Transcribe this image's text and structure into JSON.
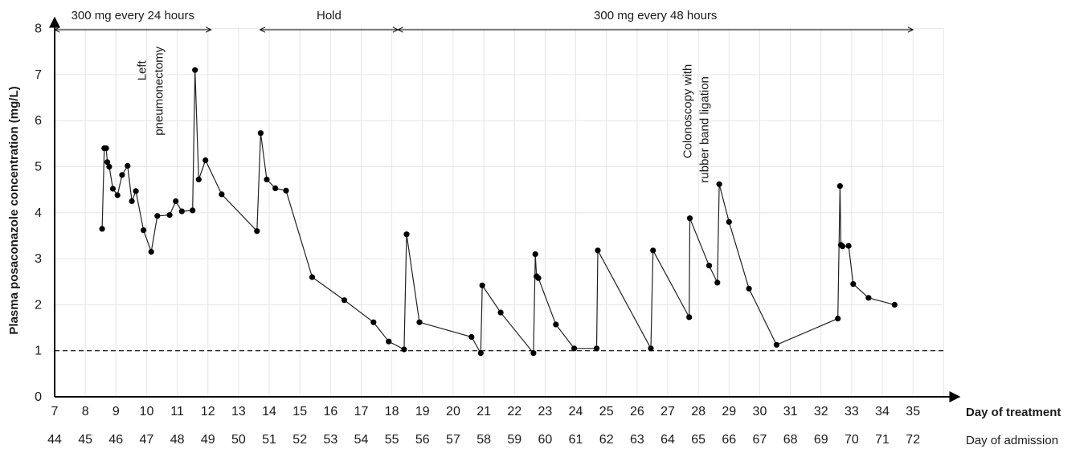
{
  "chart_data": {
    "type": "line",
    "ylabel": "Plasma posaconazole concentration (mg/L)",
    "xlabel": "Day of treatment",
    "x2label": "Day of admission",
    "xlim": [
      7,
      36
    ],
    "ylim": [
      0,
      8
    ],
    "y_ticks": [
      "0",
      "1",
      "2",
      "3",
      "4",
      "5",
      "6",
      "7",
      "8"
    ],
    "x_ticks": [
      "7",
      "8",
      "9",
      "10",
      "11",
      "12",
      "13",
      "14",
      "15",
      "16",
      "17",
      "18",
      "19",
      "20",
      "21",
      "22",
      "23",
      "24",
      "25",
      "26",
      "27",
      "28",
      "29",
      "30",
      "31",
      "32",
      "33",
      "34",
      "35"
    ],
    "x_admission_ticks": [
      "44",
      "45",
      "46",
      "47",
      "48",
      "49",
      "50",
      "51",
      "52",
      "53",
      "54",
      "55",
      "56",
      "57",
      "58",
      "59",
      "60",
      "61",
      "62",
      "63",
      "64",
      "65",
      "66",
      "67",
      "68",
      "69",
      "70",
      "71",
      "72"
    ],
    "grid": true,
    "threshold": 1.0,
    "phases": [
      {
        "label": "300 mg  every 24 hours",
        "start": 7,
        "end": 12.1
      },
      {
        "label": "Hold",
        "start": 13.7,
        "end": 18.2
      },
      {
        "label": "300 mg every 48 hours",
        "start": 18.2,
        "end": 35
      }
    ],
    "annotations": [
      {
        "lines": [
          "Left",
          "pneumonectomy"
        ],
        "x": 10.1,
        "y": 7.4
      },
      {
        "lines": [
          "Colonoscopy with",
          "rubber band ligation"
        ],
        "x": 27.9,
        "y": 7.3
      }
    ],
    "series": [
      {
        "x": [
          8.55,
          8.62,
          8.68,
          8.72,
          8.78,
          8.9,
          9.05,
          9.2,
          9.38,
          9.52,
          9.65,
          9.9,
          10.15,
          10.35,
          10.75,
          10.95,
          11.15,
          11.5,
          11.58,
          11.7,
          11.92,
          12.45,
          13.6,
          13.72,
          13.92,
          14.2,
          14.55,
          15.4,
          16.45,
          17.4,
          17.9,
          18.4,
          18.48,
          18.9,
          20.6,
          20.9,
          20.95,
          21.55,
          22.62,
          22.68,
          22.72,
          22.78,
          23.35,
          23.95,
          24.68,
          24.72,
          26.45,
          26.52,
          27.7,
          27.72,
          28.35,
          28.62,
          28.68,
          29.0,
          29.65,
          30.55,
          32.55,
          32.62,
          32.65,
          32.7,
          32.9,
          33.05,
          33.55,
          34.4
        ],
        "y": [
          3.65,
          5.4,
          5.4,
          5.1,
          5.0,
          4.52,
          4.38,
          4.82,
          5.02,
          4.25,
          4.47,
          3.62,
          3.15,
          3.93,
          3.95,
          4.25,
          4.03,
          4.05,
          7.1,
          4.72,
          5.14,
          4.4,
          3.6,
          5.73,
          4.72,
          4.53,
          4.48,
          2.6,
          2.1,
          1.62,
          1.2,
          1.03,
          3.53,
          1.62,
          1.3,
          0.95,
          2.42,
          1.83,
          0.95,
          3.1,
          2.62,
          2.58,
          1.57,
          1.05,
          1.05,
          3.18,
          1.05,
          3.18,
          1.73,
          3.88,
          2.85,
          2.48,
          4.62,
          3.8,
          2.35,
          1.13,
          1.7,
          4.58,
          3.3,
          3.27,
          3.28,
          2.45,
          2.15,
          2.0
        ]
      }
    ]
  }
}
